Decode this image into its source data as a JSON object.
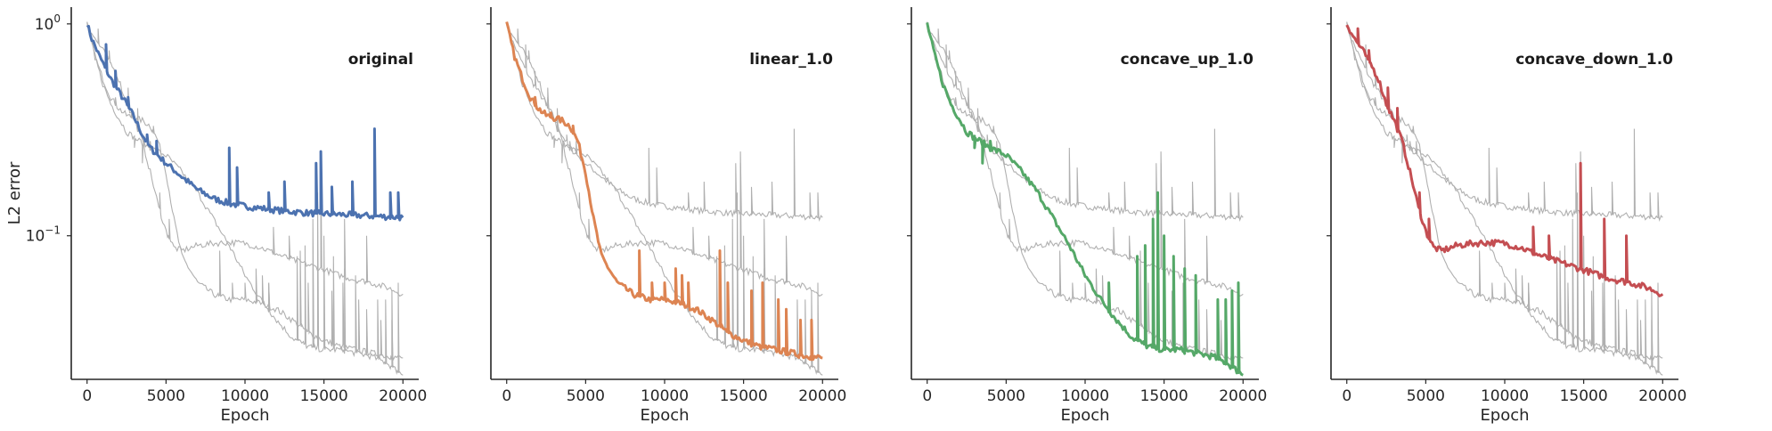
{
  "chart_data": {
    "type": "line",
    "shared_y": true,
    "xlabel": "Epoch",
    "ylabel": "L2 error",
    "y_scale": "log",
    "ylim": [
      0.021,
      1.2
    ],
    "xlim": [
      -1000,
      21000
    ],
    "xticks": [
      0,
      5000,
      10000,
      15000,
      20000
    ],
    "y_major_ticks": [
      {
        "value": 1.0,
        "base": "10",
        "exp": "0"
      },
      {
        "value": 0.1,
        "base": "10",
        "exp": "−1"
      }
    ],
    "grid": false,
    "series": [
      {
        "name": "original",
        "color": "#4c72b0",
        "points": [
          [
            0,
            1.0
          ],
          [
            300,
            0.85
          ],
          [
            800,
            0.7
          ],
          [
            1500,
            0.55
          ],
          [
            2000,
            0.48
          ],
          [
            2500,
            0.42
          ],
          [
            3000,
            0.36
          ],
          [
            3500,
            0.3
          ],
          [
            4000,
            0.26
          ],
          [
            5000,
            0.22
          ],
          [
            6000,
            0.19
          ],
          [
            7000,
            0.165
          ],
          [
            8000,
            0.15
          ],
          [
            9000,
            0.142
          ],
          [
            10000,
            0.138
          ],
          [
            11000,
            0.135
          ],
          [
            12000,
            0.132
          ],
          [
            13000,
            0.13
          ],
          [
            14000,
            0.128
          ],
          [
            15000,
            0.127
          ],
          [
            16000,
            0.126
          ],
          [
            17000,
            0.125
          ],
          [
            18000,
            0.124
          ],
          [
            19000,
            0.123
          ],
          [
            20000,
            0.122
          ]
        ],
        "spikes": [
          [
            1200,
            0.8
          ],
          [
            1800,
            0.6
          ],
          [
            2600,
            0.45
          ],
          [
            3800,
            0.3
          ],
          [
            4400,
            0.28
          ],
          [
            9000,
            0.26
          ],
          [
            9500,
            0.21
          ],
          [
            11500,
            0.16
          ],
          [
            12500,
            0.18
          ],
          [
            14500,
            0.22
          ],
          [
            14800,
            0.25
          ],
          [
            15500,
            0.17
          ],
          [
            16800,
            0.18
          ],
          [
            18200,
            0.32
          ],
          [
            19200,
            0.16
          ],
          [
            19700,
            0.16
          ]
        ]
      },
      {
        "name": "linear_1.0",
        "color": "#dd8452",
        "points": [
          [
            0,
            1.0
          ],
          [
            500,
            0.7
          ],
          [
            1000,
            0.55
          ],
          [
            1500,
            0.45
          ],
          [
            2000,
            0.4
          ],
          [
            2500,
            0.37
          ],
          [
            3000,
            0.36
          ],
          [
            3500,
            0.35
          ],
          [
            4000,
            0.33
          ],
          [
            4500,
            0.28
          ],
          [
            5000,
            0.2
          ],
          [
            5500,
            0.12
          ],
          [
            6000,
            0.08
          ],
          [
            7000,
            0.06
          ],
          [
            8000,
            0.053
          ],
          [
            9000,
            0.05
          ],
          [
            10000,
            0.05
          ],
          [
            11000,
            0.048
          ],
          [
            12000,
            0.045
          ],
          [
            13000,
            0.04
          ],
          [
            14000,
            0.035
          ],
          [
            15000,
            0.032
          ],
          [
            16000,
            0.03
          ],
          [
            17000,
            0.029
          ],
          [
            18000,
            0.028
          ],
          [
            19000,
            0.027
          ],
          [
            20000,
            0.0265
          ]
        ],
        "spikes": [
          [
            1800,
            0.45
          ],
          [
            2800,
            0.38
          ],
          [
            4200,
            0.33
          ],
          [
            8400,
            0.085
          ],
          [
            9200,
            0.06
          ],
          [
            10000,
            0.06
          ],
          [
            10700,
            0.07
          ],
          [
            11100,
            0.065
          ],
          [
            11500,
            0.06
          ],
          [
            13500,
            0.085
          ],
          [
            14000,
            0.06
          ],
          [
            15500,
            0.055
          ],
          [
            16200,
            0.06
          ],
          [
            17200,
            0.05
          ],
          [
            17700,
            0.045
          ],
          [
            18600,
            0.04
          ],
          [
            19300,
            0.04
          ]
        ]
      },
      {
        "name": "concave_up_1.0",
        "color": "#55a868",
        "points": [
          [
            0,
            1.0
          ],
          [
            500,
            0.7
          ],
          [
            1000,
            0.52
          ],
          [
            1500,
            0.42
          ],
          [
            2000,
            0.36
          ],
          [
            2500,
            0.31
          ],
          [
            3000,
            0.29
          ],
          [
            4000,
            0.26
          ],
          [
            5000,
            0.24
          ],
          [
            6000,
            0.2
          ],
          [
            7000,
            0.16
          ],
          [
            8000,
            0.12
          ],
          [
            9000,
            0.09
          ],
          [
            10000,
            0.065
          ],
          [
            11000,
            0.05
          ],
          [
            12000,
            0.04
          ],
          [
            13000,
            0.033
          ],
          [
            14000,
            0.03
          ],
          [
            15000,
            0.029
          ],
          [
            16000,
            0.029
          ],
          [
            17000,
            0.028
          ],
          [
            18000,
            0.027
          ],
          [
            19000,
            0.025
          ],
          [
            20000,
            0.022
          ]
        ],
        "spikes": [
          [
            3000,
            0.26
          ],
          [
            3500,
            0.22
          ],
          [
            4000,
            0.28
          ],
          [
            11500,
            0.06
          ],
          [
            13300,
            0.08
          ],
          [
            13800,
            0.09
          ],
          [
            14300,
            0.12
          ],
          [
            14600,
            0.16
          ],
          [
            15000,
            0.1
          ],
          [
            15600,
            0.08
          ],
          [
            16300,
            0.07
          ],
          [
            17000,
            0.065
          ],
          [
            18400,
            0.05
          ],
          [
            18900,
            0.05
          ],
          [
            19300,
            0.055
          ],
          [
            19700,
            0.06
          ]
        ]
      },
      {
        "name": "concave_down_1.0",
        "color": "#c44e52",
        "points": [
          [
            0,
            1.0
          ],
          [
            500,
            0.85
          ],
          [
            1000,
            0.75
          ],
          [
            1500,
            0.65
          ],
          [
            2000,
            0.55
          ],
          [
            2500,
            0.42
          ],
          [
            3000,
            0.35
          ],
          [
            3500,
            0.28
          ],
          [
            4000,
            0.2
          ],
          [
            4500,
            0.14
          ],
          [
            5000,
            0.105
          ],
          [
            5500,
            0.088
          ],
          [
            6000,
            0.085
          ],
          [
            7000,
            0.09
          ],
          [
            8000,
            0.092
          ],
          [
            9000,
            0.093
          ],
          [
            10000,
            0.092
          ],
          [
            11000,
            0.088
          ],
          [
            12000,
            0.082
          ],
          [
            13000,
            0.077
          ],
          [
            14000,
            0.073
          ],
          [
            15000,
            0.069
          ],
          [
            16000,
            0.065
          ],
          [
            17000,
            0.062
          ],
          [
            18000,
            0.06
          ],
          [
            19000,
            0.057
          ],
          [
            20000,
            0.053
          ]
        ],
        "spikes": [
          [
            700,
            0.95
          ],
          [
            1400,
            0.75
          ],
          [
            2600,
            0.5
          ],
          [
            3200,
            0.4
          ],
          [
            4600,
            0.16
          ],
          [
            5200,
            0.12
          ],
          [
            11800,
            0.11
          ],
          [
            12800,
            0.1
          ],
          [
            14800,
            0.22
          ],
          [
            16300,
            0.12
          ],
          [
            17700,
            0.1
          ]
        ]
      }
    ]
  }
}
